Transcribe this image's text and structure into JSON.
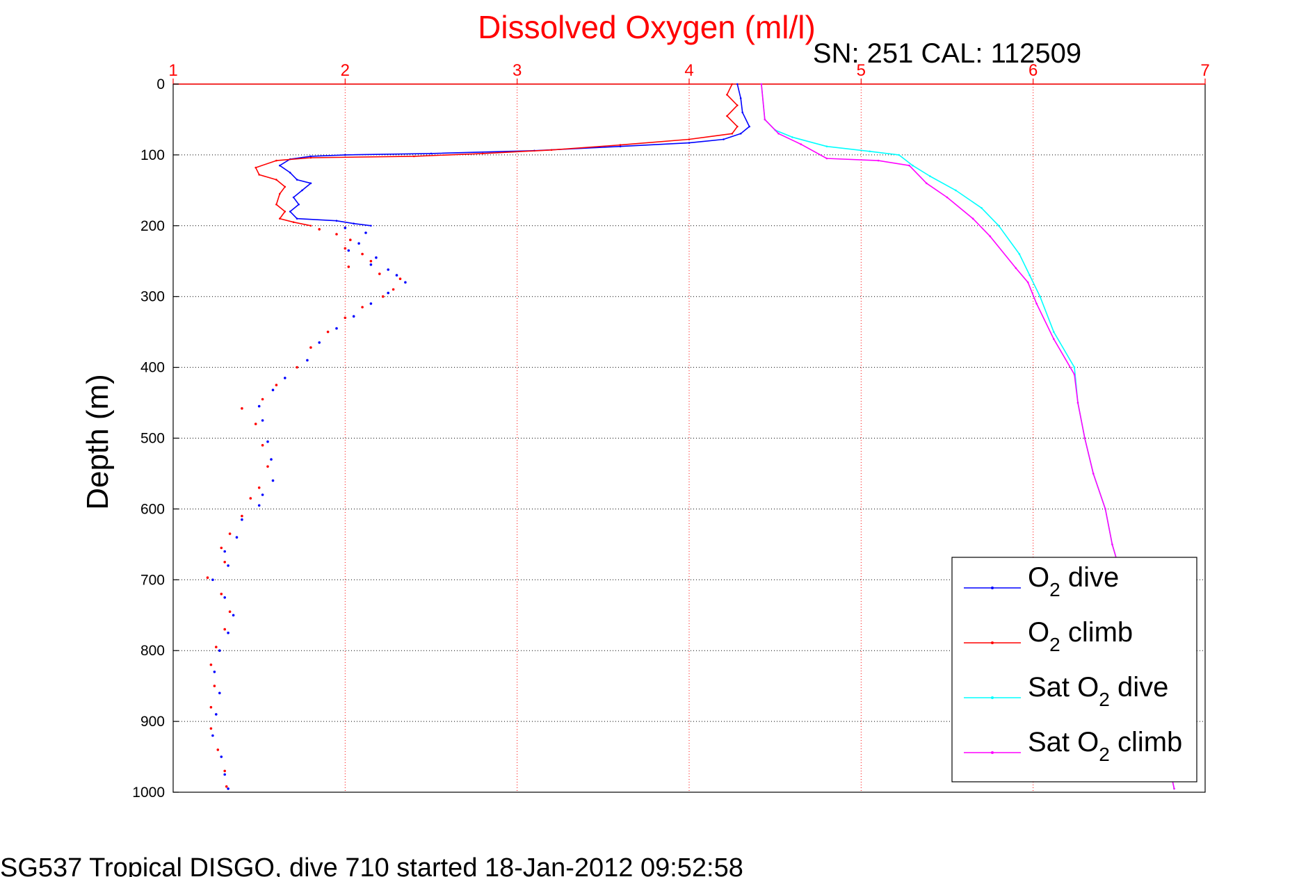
{
  "chart_data": {
    "type": "scatter",
    "title": "Dissolved Oxygen (ml/l)",
    "subtitle": "SN: 251  CAL: 112509",
    "ylabel": "Depth (m)",
    "footer": "SG537 Tropical DISGO, dive 710 started 18-Jan-2012 09:52:58",
    "xlim": [
      1,
      7
    ],
    "ylim": [
      0,
      1000
    ],
    "y_reversed": true,
    "x_axis_position": "top",
    "x_ticks": [
      "1",
      "2",
      "3",
      "4",
      "5",
      "6",
      "7"
    ],
    "y_ticks": [
      "0",
      "100",
      "200",
      "300",
      "400",
      "500",
      "600",
      "700",
      "800",
      "900",
      "1000"
    ],
    "grid": true,
    "legend_position": "bottom-right",
    "colors": {
      "title": "#ff0000",
      "x_axis": "#ff0000",
      "grid_x": "#ff0000",
      "grid_y": "#000000",
      "o2_dive": "#0000ff",
      "o2_climb": "#ff0000",
      "sat_dive": "#00ffff",
      "sat_climb": "#ff00ff"
    },
    "series": [
      {
        "name_parts": [
          "O",
          "2",
          " dive"
        ],
        "color": "#0000ff",
        "style": "line",
        "points": [
          [
            4.28,
            0
          ],
          [
            4.3,
            20
          ],
          [
            4.31,
            40
          ],
          [
            4.35,
            60
          ],
          [
            4.3,
            70
          ],
          [
            4.2,
            78
          ],
          [
            4.0,
            83
          ],
          [
            3.6,
            88
          ],
          [
            3.1,
            94
          ],
          [
            2.5,
            98
          ],
          [
            2.0,
            100
          ],
          [
            1.8,
            102
          ],
          [
            1.68,
            106
          ],
          [
            1.62,
            115
          ],
          [
            1.68,
            125
          ],
          [
            1.72,
            135
          ],
          [
            1.8,
            140
          ],
          [
            1.75,
            150
          ],
          [
            1.7,
            160
          ],
          [
            1.73,
            170
          ],
          [
            1.68,
            180
          ],
          [
            1.72,
            190
          ],
          [
            1.95,
            193
          ],
          [
            2.05,
            197
          ],
          [
            2.15,
            200
          ]
        ]
      },
      {
        "name_parts": [
          "O",
          "2",
          " climb"
        ],
        "color": "#ff0000",
        "style": "line",
        "points": [
          [
            4.25,
            0
          ],
          [
            4.22,
            15
          ],
          [
            4.28,
            30
          ],
          [
            4.22,
            45
          ],
          [
            4.28,
            60
          ],
          [
            4.25,
            70
          ],
          [
            4.0,
            78
          ],
          [
            3.6,
            86
          ],
          [
            3.2,
            93
          ],
          [
            2.8,
            98
          ],
          [
            2.4,
            102
          ],
          [
            1.8,
            104
          ],
          [
            1.6,
            108
          ],
          [
            1.48,
            118
          ],
          [
            1.5,
            128
          ],
          [
            1.6,
            135
          ],
          [
            1.65,
            145
          ],
          [
            1.62,
            155
          ],
          [
            1.6,
            170
          ],
          [
            1.65,
            180
          ],
          [
            1.62,
            190
          ],
          [
            1.7,
            195
          ],
          [
            1.8,
            200
          ]
        ]
      },
      {
        "name_parts": [
          "",
          "",
          ""
        ],
        "color": "#ff0000",
        "style": "dots",
        "points": [
          [
            1.85,
            205
          ],
          [
            1.95,
            212
          ],
          [
            2.03,
            220
          ],
          [
            2.0,
            232
          ],
          [
            2.1,
            240
          ],
          [
            2.15,
            250
          ],
          [
            2.02,
            258
          ],
          [
            2.2,
            268
          ],
          [
            2.32,
            275
          ],
          [
            2.28,
            290
          ],
          [
            2.22,
            300
          ],
          [
            2.1,
            315
          ],
          [
            2.0,
            330
          ],
          [
            1.9,
            350
          ],
          [
            1.8,
            372
          ],
          [
            1.72,
            400
          ],
          [
            1.6,
            425
          ],
          [
            1.52,
            445
          ],
          [
            1.4,
            458
          ],
          [
            1.48,
            480
          ],
          [
            1.52,
            510
          ],
          [
            1.55,
            540
          ],
          [
            1.5,
            570
          ],
          [
            1.45,
            585
          ],
          [
            1.4,
            610
          ],
          [
            1.33,
            635
          ],
          [
            1.28,
            655
          ],
          [
            1.3,
            675
          ],
          [
            1.2,
            697
          ],
          [
            1.28,
            720
          ],
          [
            1.33,
            745
          ],
          [
            1.3,
            770
          ],
          [
            1.25,
            795
          ],
          [
            1.22,
            820
          ],
          [
            1.24,
            850
          ],
          [
            1.22,
            880
          ],
          [
            1.22,
            910
          ],
          [
            1.26,
            940
          ],
          [
            1.3,
            970
          ],
          [
            1.31,
            992
          ]
        ]
      },
      {
        "name_parts": [
          "",
          "",
          ""
        ],
        "color": "#0000ff",
        "style": "dots",
        "points": [
          [
            2.0,
            203
          ],
          [
            2.12,
            210
          ],
          [
            2.08,
            225
          ],
          [
            2.02,
            235
          ],
          [
            2.18,
            245
          ],
          [
            2.15,
            255
          ],
          [
            2.25,
            262
          ],
          [
            2.3,
            270
          ],
          [
            2.35,
            280
          ],
          [
            2.25,
            295
          ],
          [
            2.15,
            310
          ],
          [
            2.05,
            328
          ],
          [
            1.95,
            345
          ],
          [
            1.85,
            365
          ],
          [
            1.78,
            390
          ],
          [
            1.65,
            415
          ],
          [
            1.58,
            432
          ],
          [
            1.5,
            455
          ],
          [
            1.52,
            475
          ],
          [
            1.55,
            505
          ],
          [
            1.57,
            530
          ],
          [
            1.58,
            560
          ],
          [
            1.52,
            580
          ],
          [
            1.5,
            595
          ],
          [
            1.4,
            615
          ],
          [
            1.37,
            640
          ],
          [
            1.3,
            660
          ],
          [
            1.32,
            680
          ],
          [
            1.23,
            700
          ],
          [
            1.3,
            725
          ],
          [
            1.35,
            750
          ],
          [
            1.32,
            775
          ],
          [
            1.27,
            800
          ],
          [
            1.24,
            830
          ],
          [
            1.27,
            860
          ],
          [
            1.25,
            890
          ],
          [
            1.23,
            920
          ],
          [
            1.28,
            950
          ],
          [
            1.3,
            975
          ],
          [
            1.32,
            995
          ]
        ]
      },
      {
        "name_parts": [
          "Sat O",
          "2",
          " dive"
        ],
        "color": "#00ffff",
        "style": "line",
        "points": [
          [
            4.42,
            0
          ],
          [
            4.44,
            50
          ],
          [
            4.5,
            65
          ],
          [
            4.6,
            75
          ],
          [
            4.8,
            88
          ],
          [
            5.05,
            95
          ],
          [
            5.22,
            100
          ],
          [
            5.3,
            115
          ],
          [
            5.4,
            130
          ],
          [
            5.55,
            150
          ],
          [
            5.7,
            175
          ],
          [
            5.8,
            200
          ],
          [
            5.92,
            240
          ],
          [
            5.98,
            270
          ],
          [
            6.04,
            300
          ],
          [
            6.12,
            350
          ],
          [
            6.24,
            400
          ],
          [
            6.26,
            450
          ],
          [
            6.3,
            500
          ],
          [
            6.35,
            550
          ],
          [
            6.42,
            600
          ],
          [
            6.46,
            650
          ],
          [
            6.52,
            700
          ],
          [
            6.58,
            750
          ],
          [
            6.63,
            800
          ],
          [
            6.68,
            850
          ],
          [
            6.73,
            900
          ],
          [
            6.78,
            950
          ],
          [
            6.82,
            995
          ]
        ]
      },
      {
        "name_parts": [
          "Sat O",
          "2",
          " climb"
        ],
        "color": "#ff00ff",
        "style": "line",
        "points": [
          [
            4.42,
            0
          ],
          [
            4.44,
            50
          ],
          [
            4.52,
            70
          ],
          [
            4.65,
            85
          ],
          [
            4.8,
            105
          ],
          [
            5.1,
            108
          ],
          [
            5.28,
            115
          ],
          [
            5.38,
            140
          ],
          [
            5.5,
            160
          ],
          [
            5.65,
            190
          ],
          [
            5.75,
            215
          ],
          [
            5.9,
            260
          ],
          [
            5.97,
            280
          ],
          [
            6.02,
            310
          ],
          [
            6.12,
            360
          ],
          [
            6.24,
            410
          ],
          [
            6.26,
            450
          ],
          [
            6.3,
            500
          ],
          [
            6.35,
            550
          ],
          [
            6.42,
            600
          ],
          [
            6.46,
            650
          ],
          [
            6.52,
            700
          ],
          [
            6.58,
            750
          ],
          [
            6.63,
            800
          ],
          [
            6.68,
            850
          ],
          [
            6.73,
            900
          ],
          [
            6.78,
            950
          ],
          [
            6.82,
            995
          ]
        ]
      }
    ],
    "legend": [
      {
        "main": "O",
        "sub": "2",
        "rest": " dive",
        "color": "#0000ff"
      },
      {
        "main": "O",
        "sub": "2",
        "rest": " climb",
        "color": "#ff0000"
      },
      {
        "main": "Sat O",
        "sub": "2",
        "rest": " dive",
        "color": "#00ffff"
      },
      {
        "main": "Sat O",
        "sub": "2",
        "rest": " climb",
        "color": "#ff00ff"
      }
    ]
  }
}
